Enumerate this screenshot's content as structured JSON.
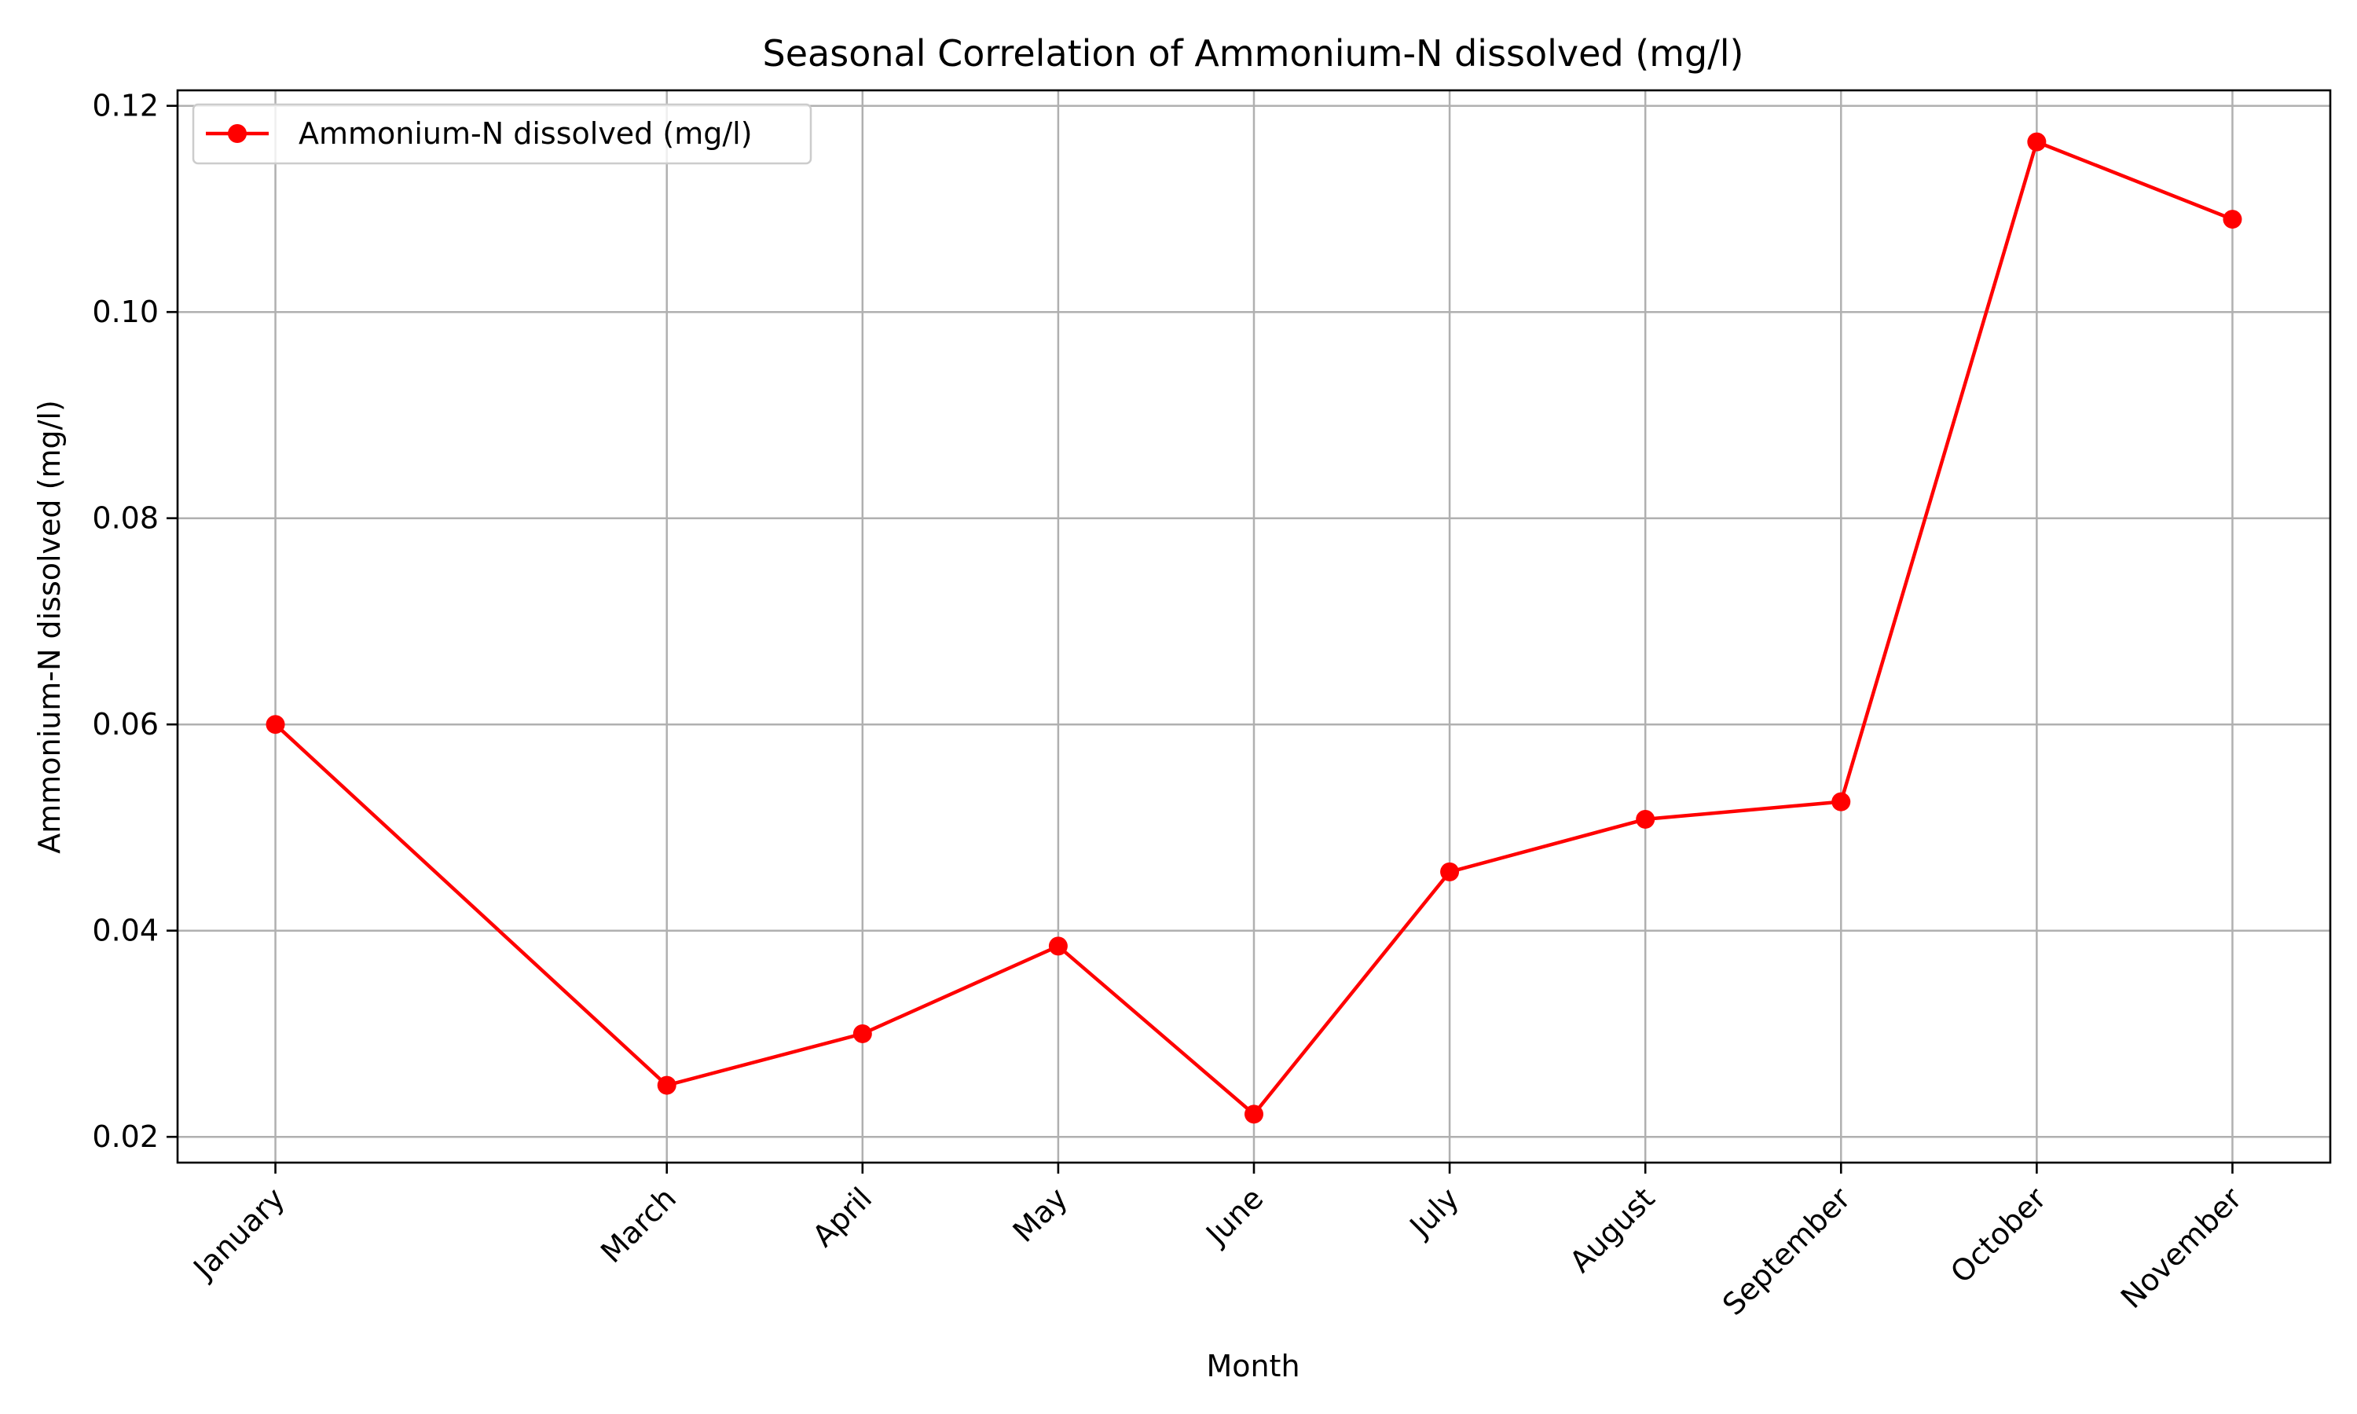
{
  "chart_data": {
    "type": "line",
    "title": "Seasonal Correlation of Ammonium-N dissolved (mg/l)",
    "xlabel": "Month",
    "ylabel": "Ammonium-N dissolved (mg/l)",
    "x": [
      1,
      3,
      4,
      5,
      6,
      7,
      8,
      9,
      10,
      11
    ],
    "categories": [
      "January",
      "March",
      "April",
      "May",
      "June",
      "July",
      "August",
      "September",
      "October",
      "November"
    ],
    "series": [
      {
        "name": "Ammonium-N dissolved (mg/l)",
        "color": "#ff0000",
        "marker": "circle",
        "values": [
          0.06,
          0.025,
          0.03,
          0.0385,
          0.0222,
          0.0457,
          0.0508,
          0.0525,
          0.1165,
          0.109
        ]
      }
    ],
    "xlim": [
      0.5,
      11.5
    ],
    "ylim": [
      0.0175,
      0.1215
    ],
    "yticks": [
      0.02,
      0.04,
      0.06,
      0.08,
      0.1,
      0.12
    ],
    "ytick_labels": [
      "0.02",
      "0.04",
      "0.06",
      "0.08",
      "0.10",
      "0.12"
    ],
    "grid": true,
    "legend_position": "top-left"
  }
}
